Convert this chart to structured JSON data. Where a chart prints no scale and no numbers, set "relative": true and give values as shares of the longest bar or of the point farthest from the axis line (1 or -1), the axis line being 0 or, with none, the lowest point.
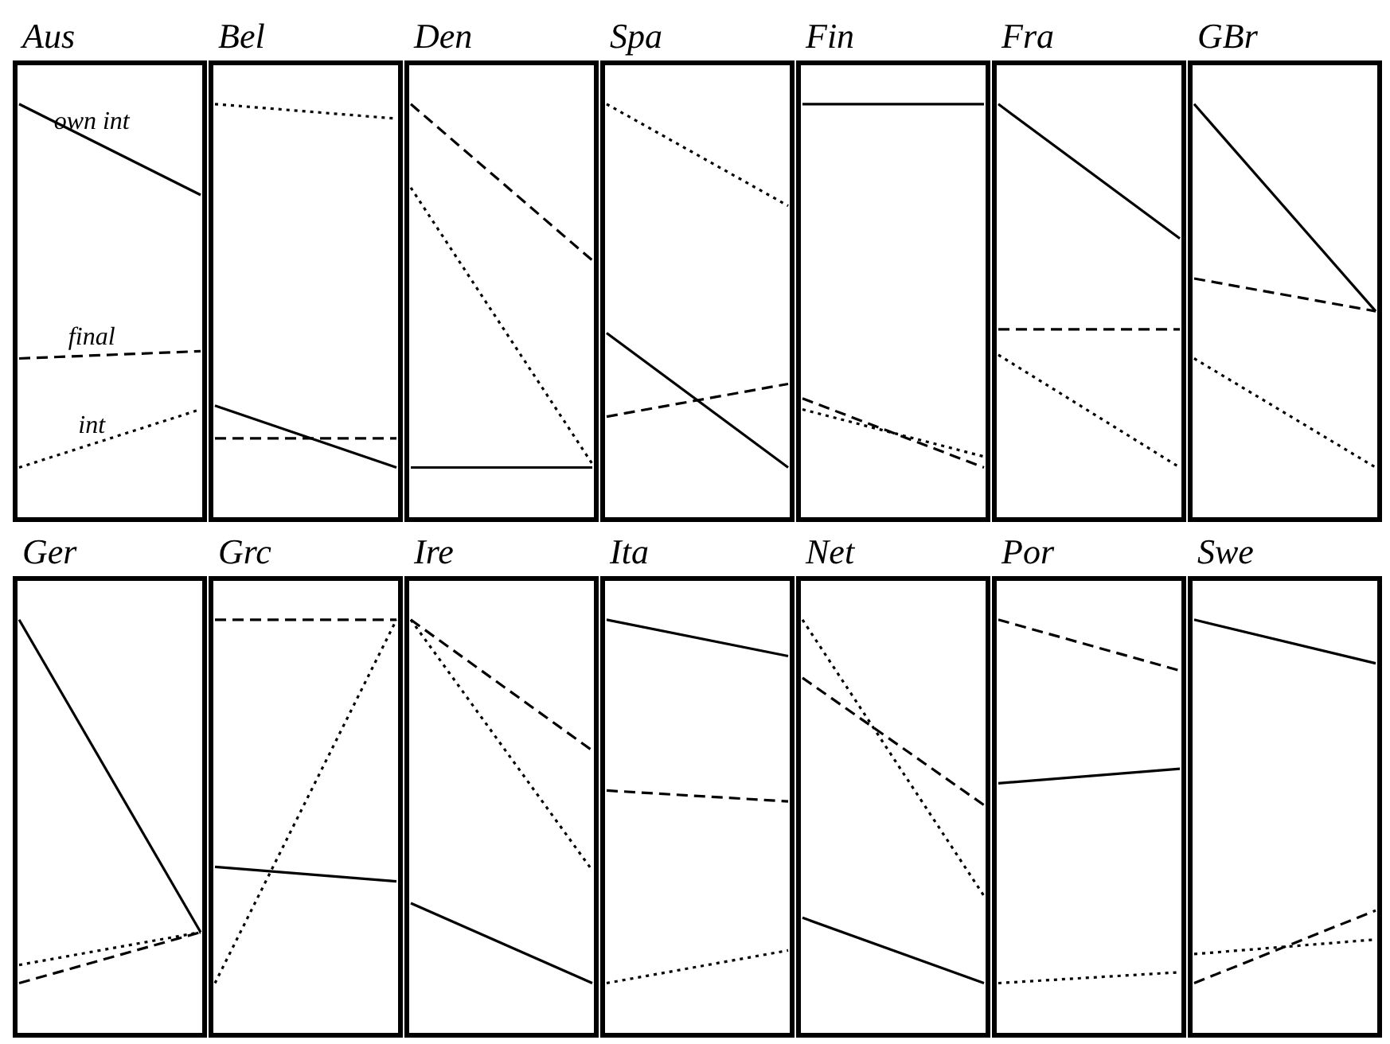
{
  "chart_data": [
    {
      "type": "line",
      "title": "Aus",
      "relative": true,
      "marker": "none",
      "categories": [
        null,
        null
      ],
      "series": [
        {
          "name": "own int",
          "color": "#000000",
          "line_style": "solid",
          "values": [
            1,
            0.75
          ]
        },
        {
          "name": "final",
          "color": "#000000",
          "line_style": "dashed",
          "values": [
            0.3,
            0.32
          ]
        },
        {
          "name": "int",
          "color": "#000000",
          "line_style": "dotted",
          "values": [
            0,
            0.16
          ]
        }
      ]
    },
    {
      "type": "line",
      "title": "Bel",
      "relative": true,
      "marker": "none",
      "categories": [
        null,
        null
      ],
      "series": [
        {
          "color": "#000000",
          "line_style": "solid",
          "values": [
            0.17,
            0
          ]
        },
        {
          "color": "#000000",
          "line_style": "dashed",
          "values": [
            0.08,
            0.08
          ]
        },
        {
          "color": "#000000",
          "line_style": "dotted",
          "values": [
            1,
            0.96
          ]
        }
      ]
    },
    {
      "type": "line",
      "title": "Den",
      "relative": true,
      "marker": "none",
      "categories": [
        null,
        null
      ],
      "series": [
        {
          "color": "#000000",
          "line_style": "solid",
          "values": [
            0,
            0
          ]
        },
        {
          "color": "#000000",
          "line_style": "dashed",
          "values": [
            1,
            0.57
          ]
        },
        {
          "color": "#000000",
          "line_style": "dotted",
          "values": [
            0.77,
            0.01
          ]
        }
      ]
    },
    {
      "type": "line",
      "title": "Spa",
      "relative": true,
      "marker": "none",
      "categories": [
        null,
        null
      ],
      "series": [
        {
          "color": "#000000",
          "line_style": "solid",
          "values": [
            0.37,
            0
          ]
        },
        {
          "color": "#000000",
          "line_style": "dashed",
          "values": [
            0.14,
            0.23
          ]
        },
        {
          "color": "#000000",
          "line_style": "dotted",
          "values": [
            1,
            0.72
          ]
        }
      ]
    },
    {
      "type": "line",
      "title": "Fin",
      "relative": true,
      "marker": "none",
      "categories": [
        null,
        null
      ],
      "series": [
        {
          "color": "#000000",
          "line_style": "solid",
          "values": [
            1,
            1
          ]
        },
        {
          "color": "#000000",
          "line_style": "dashed",
          "values": [
            0.19,
            0
          ]
        },
        {
          "color": "#000000",
          "line_style": "dotted",
          "values": [
            0.16,
            0.03
          ]
        }
      ]
    },
    {
      "type": "line",
      "title": "Fra",
      "relative": true,
      "marker": "none",
      "categories": [
        null,
        null
      ],
      "series": [
        {
          "color": "#000000",
          "line_style": "solid",
          "values": [
            1,
            0.63
          ]
        },
        {
          "color": "#000000",
          "line_style": "dashed",
          "values": [
            0.38,
            0.38
          ]
        },
        {
          "color": "#000000",
          "line_style": "dotted",
          "values": [
            0.31,
            0
          ]
        }
      ]
    },
    {
      "type": "line",
      "title": "GBr",
      "relative": true,
      "marker": "none",
      "categories": [
        null,
        null
      ],
      "series": [
        {
          "color": "#000000",
          "line_style": "solid",
          "values": [
            1,
            0.43
          ]
        },
        {
          "color": "#000000",
          "line_style": "dashed",
          "values": [
            0.52,
            0.43
          ]
        },
        {
          "color": "#000000",
          "line_style": "dotted",
          "values": [
            0.3,
            0
          ]
        }
      ]
    },
    {
      "type": "line",
      "title": "Ger",
      "relative": true,
      "marker": "none",
      "categories": [
        null,
        null
      ],
      "series": [
        {
          "color": "#000000",
          "line_style": "solid",
          "values": [
            1,
            0.14
          ]
        },
        {
          "color": "#000000",
          "line_style": "dashed",
          "values": [
            0,
            0.14
          ]
        },
        {
          "color": "#000000",
          "line_style": "dotted",
          "values": [
            0.05,
            0.14
          ]
        }
      ]
    },
    {
      "type": "line",
      "title": "Grc",
      "relative": true,
      "marker": "none",
      "categories": [
        null,
        null
      ],
      "series": [
        {
          "color": "#000000",
          "line_style": "solid",
          "values": [
            0.32,
            0.28
          ]
        },
        {
          "color": "#000000",
          "line_style": "dashed",
          "values": [
            1,
            1
          ]
        },
        {
          "color": "#000000",
          "line_style": "dotted",
          "values": [
            0,
            1
          ]
        }
      ]
    },
    {
      "type": "line",
      "title": "Ire",
      "relative": true,
      "marker": "none",
      "categories": [
        null,
        null
      ],
      "series": [
        {
          "color": "#000000",
          "line_style": "solid",
          "values": [
            0.22,
            0
          ]
        },
        {
          "color": "#000000",
          "line_style": "dashed",
          "values": [
            1,
            0.64
          ]
        },
        {
          "color": "#000000",
          "line_style": "dotted",
          "values": [
            1,
            0.31
          ]
        }
      ]
    },
    {
      "type": "line",
      "title": "Ita",
      "relative": true,
      "marker": "none",
      "categories": [
        null,
        null
      ],
      "series": [
        {
          "color": "#000000",
          "line_style": "solid",
          "values": [
            1,
            0.9
          ]
        },
        {
          "color": "#000000",
          "line_style": "dashed",
          "values": [
            0.53,
            0.5
          ]
        },
        {
          "color": "#000000",
          "line_style": "dotted",
          "values": [
            0,
            0.09
          ]
        }
      ]
    },
    {
      "type": "line",
      "title": "Net",
      "relative": true,
      "marker": "none",
      "categories": [
        null,
        null
      ],
      "series": [
        {
          "color": "#000000",
          "line_style": "solid",
          "values": [
            0.18,
            0
          ]
        },
        {
          "color": "#000000",
          "line_style": "dashed",
          "values": [
            0.84,
            0.49
          ]
        },
        {
          "color": "#000000",
          "line_style": "dotted",
          "values": [
            1,
            0.24
          ]
        }
      ]
    },
    {
      "type": "line",
      "title": "Por",
      "relative": true,
      "marker": "none",
      "categories": [
        null,
        null
      ],
      "series": [
        {
          "color": "#000000",
          "line_style": "solid",
          "values": [
            0.55,
            0.59
          ]
        },
        {
          "color": "#000000",
          "line_style": "dashed",
          "values": [
            1,
            0.86
          ]
        },
        {
          "color": "#000000",
          "line_style": "dotted",
          "values": [
            0,
            0.03
          ]
        }
      ]
    },
    {
      "type": "line",
      "title": "Swe",
      "relative": true,
      "marker": "none",
      "categories": [
        null,
        null
      ],
      "series": [
        {
          "color": "#000000",
          "line_style": "solid",
          "values": [
            1,
            0.88
          ]
        },
        {
          "color": "#000000",
          "line_style": "dashed",
          "values": [
            0,
            0.2
          ]
        },
        {
          "color": "#000000",
          "line_style": "dotted",
          "values": [
            0.08,
            0.12
          ]
        }
      ]
    }
  ]
}
